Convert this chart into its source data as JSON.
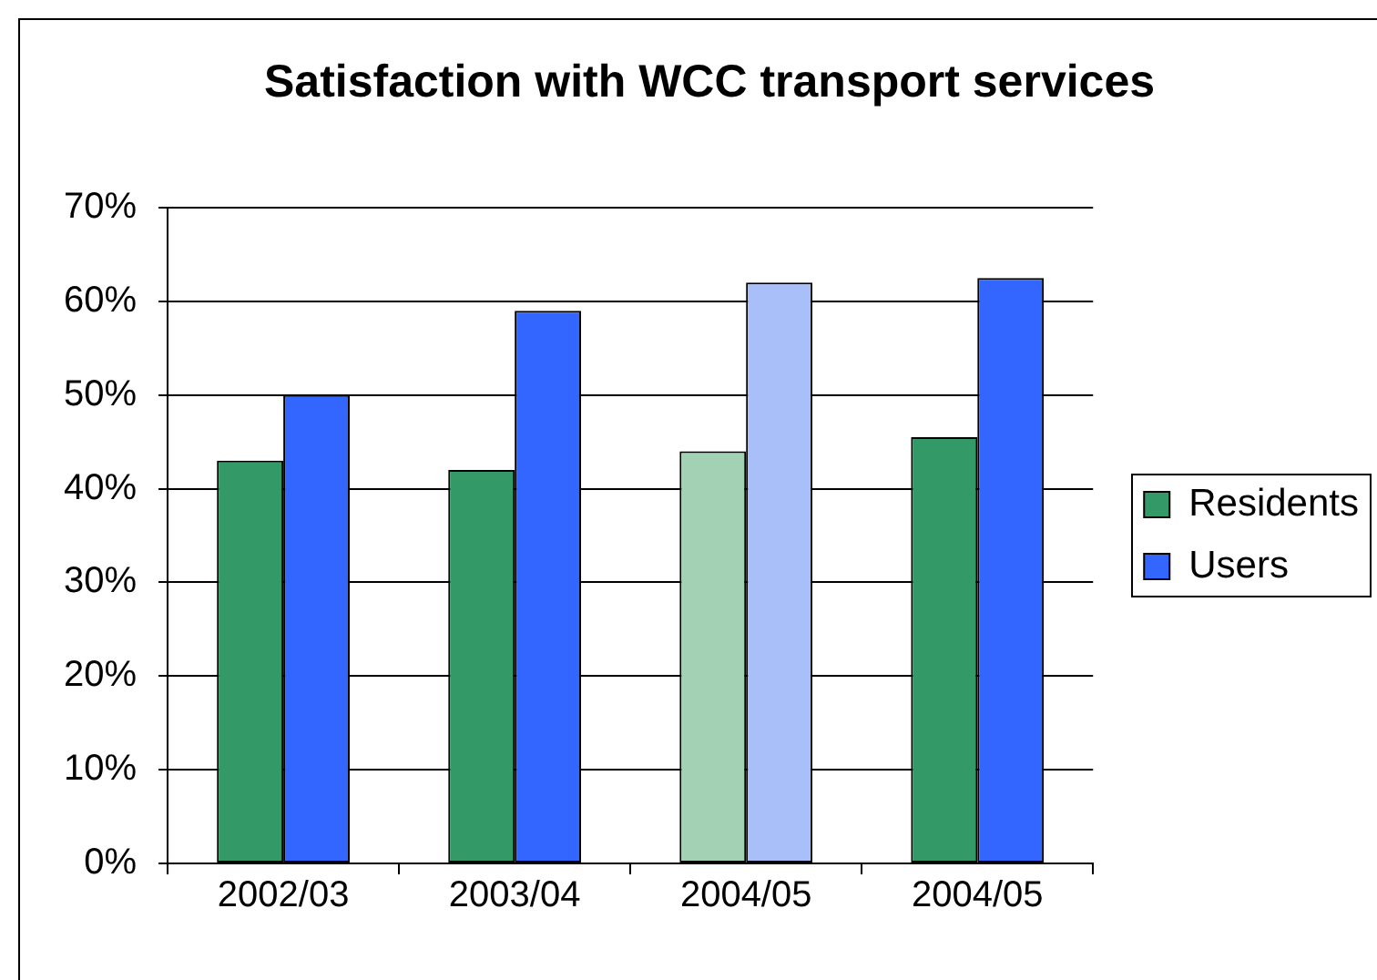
{
  "chart_data": {
    "type": "bar",
    "title": "Satisfaction with WCC transport services",
    "categories": [
      "2002/03",
      "2003/04",
      "2004/05",
      "2004/05"
    ],
    "series": [
      {
        "name": "Residents",
        "color": "#339966",
        "colors": [
          "#339966",
          "#339966",
          "#a3d1b3",
          "#339966"
        ],
        "values": [
          43,
          42,
          44,
          45.5
        ]
      },
      {
        "name": "Users",
        "color": "#3366ff",
        "colors": [
          "#3366ff",
          "#3366ff",
          "#a9bffa",
          "#3366ff"
        ],
        "values": [
          50,
          59,
          62,
          62.5
        ]
      }
    ],
    "ylim": [
      0,
      70
    ],
    "yticks": [
      {
        "value": 0,
        "label": "0%"
      },
      {
        "value": 10,
        "label": "10%"
      },
      {
        "value": 20,
        "label": "20%"
      },
      {
        "value": 30,
        "label": "30%"
      },
      {
        "value": 40,
        "label": "40%"
      },
      {
        "value": 50,
        "label": "50%"
      },
      {
        "value": 60,
        "label": "60%"
      },
      {
        "value": 70,
        "label": "70%"
      }
    ],
    "grid": "y",
    "legend": "right"
  }
}
